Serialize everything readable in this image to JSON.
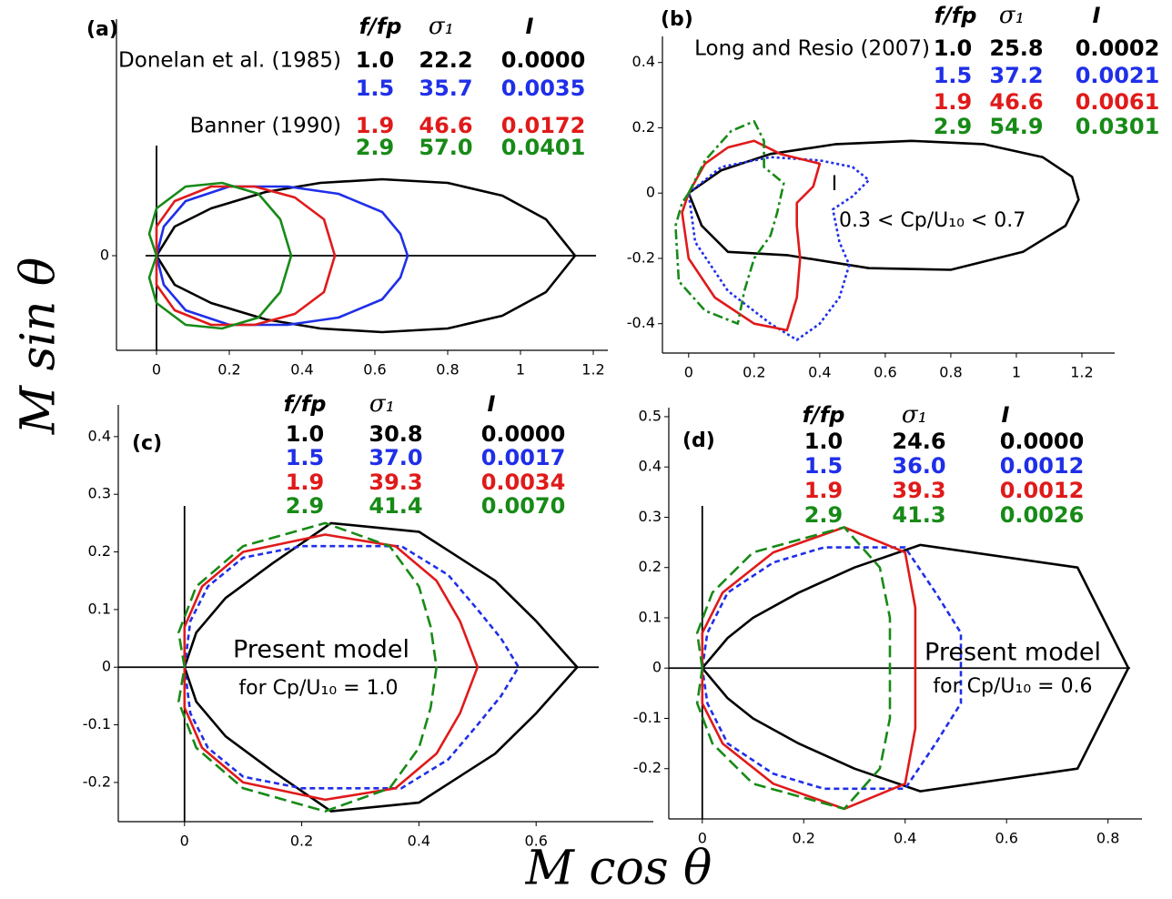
{
  "figure": {
    "xlabel": "M cos θ",
    "ylabel": "M sin θ"
  },
  "chart_data": [
    {
      "type": "line",
      "panel_label": "(a)",
      "xlim": [
        -0.11,
        1.24
      ],
      "ylim": [
        -0.26,
        0.65
      ],
      "xticks": [
        0,
        0.2,
        0.4,
        0.6,
        0.8,
        1,
        1.2
      ],
      "yticks": [
        0
      ],
      "legend_header": [
        "f/fp",
        "σ₁",
        "I"
      ],
      "series": [
        {
          "color": "#000000",
          "dash": "solid",
          "source": "Donelan et al. (1985)",
          "f_fp": "1.0",
          "sigma1": "22.2",
          "I": "0.0000",
          "x": [
            0,
            0.05,
            0.15,
            0.3,
            0.45,
            0.62,
            0.8,
            0.95,
            1.07,
            1.15,
            1.07,
            0.95,
            0.8,
            0.62,
            0.45,
            0.3,
            0.15,
            0.05,
            0
          ],
          "values": [
            0,
            0.08,
            0.13,
            0.175,
            0.2,
            0.21,
            0.2,
            0.165,
            0.1,
            0,
            -0.1,
            -0.165,
            -0.2,
            -0.21,
            -0.2,
            -0.175,
            -0.13,
            -0.08,
            0
          ]
        },
        {
          "color": "#1f2fe8",
          "dash": "solid",
          "f_fp": "1.5",
          "sigma1": "35.7",
          "I": "0.0035",
          "x": [
            0,
            0.02,
            0.08,
            0.2,
            0.36,
            0.5,
            0.62,
            0.67,
            0.69,
            0.67,
            0.62,
            0.5,
            0.36,
            0.2,
            0.08,
            0.02,
            0
          ],
          "values": [
            0,
            0.08,
            0.15,
            0.19,
            0.19,
            0.17,
            0.12,
            0.06,
            0,
            -0.06,
            -0.12,
            -0.17,
            -0.19,
            -0.19,
            -0.15,
            -0.08,
            0
          ]
        },
        {
          "color": "#e01a1a",
          "dash": "solid",
          "source": "Banner (1990)",
          "f_fp": "1.9",
          "sigma1": "46.6",
          "I": "0.0172",
          "x": [
            0,
            0,
            0.05,
            0.15,
            0.27,
            0.38,
            0.46,
            0.49,
            0.46,
            0.38,
            0.27,
            0.15,
            0.05,
            0,
            0
          ],
          "values": [
            0,
            0.08,
            0.15,
            0.19,
            0.19,
            0.16,
            0.1,
            0,
            -0.1,
            -0.16,
            -0.19,
            -0.19,
            -0.15,
            -0.08,
            0
          ]
        },
        {
          "color": "#178a17",
          "dash": "solid",
          "f_fp": "2.9",
          "sigma1": "57.0",
          "I": "0.0401",
          "x": [
            0,
            -0.02,
            0,
            0.08,
            0.18,
            0.28,
            0.34,
            0.37,
            0.34,
            0.28,
            0.18,
            0.08,
            0,
            -0.02,
            0
          ],
          "values": [
            0,
            0.06,
            0.13,
            0.19,
            0.2,
            0.17,
            0.1,
            0,
            -0.1,
            -0.17,
            -0.2,
            -0.19,
            -0.13,
            -0.06,
            0
          ]
        }
      ]
    },
    {
      "type": "line",
      "panel_label": "(b)",
      "xlim": [
        -0.08,
        1.3
      ],
      "ylim": [
        -0.49,
        0.48
      ],
      "xticks": [
        0,
        0.2,
        0.4,
        0.6,
        0.8,
        1,
        1.2
      ],
      "yticks": [
        -0.4,
        -0.2,
        0,
        0.2,
        0.4
      ],
      "legend_header": [
        "f/fp",
        "σ₁",
        "I"
      ],
      "annotations": [
        "I",
        "0.3 < Cp/U₁₀ < 0.7"
      ],
      "series": [
        {
          "color": "#000000",
          "dash": "solid",
          "source": "Long and Resio (2007)",
          "f_fp": "1.0",
          "sigma1": "25.8",
          "I": "0.0002",
          "x": [
            0,
            0.1,
            0.25,
            0.45,
            0.68,
            0.9,
            1.08,
            1.17,
            1.19,
            1.15,
            1.02,
            0.8,
            0.55,
            0.3,
            0.12,
            0.04,
            0
          ],
          "values": [
            0,
            0.07,
            0.12,
            0.15,
            0.16,
            0.15,
            0.11,
            0.05,
            -0.02,
            -0.1,
            -0.18,
            -0.235,
            -0.23,
            -0.19,
            -0.18,
            -0.1,
            0
          ]
        },
        {
          "color": "#1f2fe8",
          "dash": "dotted",
          "f_fp": "1.5",
          "sigma1": "37.2",
          "I": "0.0021",
          "x": [
            0,
            0.1,
            0.25,
            0.4,
            0.5,
            0.55,
            0.5,
            0.44,
            0.46,
            0.49,
            0.46,
            0.4,
            0.33,
            0.25,
            0.12,
            0.02,
            0
          ],
          "values": [
            0,
            0.08,
            0.11,
            0.1,
            0.08,
            0.04,
            -0.01,
            -0.05,
            -0.15,
            -0.22,
            -0.32,
            -0.4,
            -0.45,
            -0.4,
            -0.3,
            -0.15,
            0
          ]
        },
        {
          "color": "#e01a1a",
          "dash": "solid",
          "f_fp": "1.9",
          "sigma1": "46.6",
          "I": "0.0061",
          "x": [
            0,
            0.05,
            0.12,
            0.2,
            0.28,
            0.4,
            0.38,
            0.33,
            0.33,
            0.34,
            0.33,
            0.3,
            0.2,
            0.08,
            0,
            -0.02,
            0
          ],
          "values": [
            0,
            0.09,
            0.14,
            0.16,
            0.12,
            0.09,
            0.02,
            -0.03,
            -0.1,
            -0.2,
            -0.32,
            -0.42,
            -0.4,
            -0.32,
            -0.2,
            -0.06,
            0
          ]
        },
        {
          "color": "#178a17",
          "dash": "dashdot",
          "f_fp": "2.9",
          "sigma1": "54.9",
          "I": "0.0301",
          "x": [
            0,
            0.05,
            0.13,
            0.2,
            0.23,
            0.23,
            0.29,
            0.27,
            0.25,
            0.2,
            0.17,
            0.15,
            0.05,
            -0.03,
            -0.04,
            -0.02,
            0
          ],
          "values": [
            0,
            0.1,
            0.19,
            0.22,
            0.16,
            0.08,
            0.03,
            -0.06,
            -0.13,
            -0.2,
            -0.3,
            -0.4,
            -0.36,
            -0.27,
            -0.1,
            -0.03,
            0
          ]
        }
      ]
    },
    {
      "type": "line",
      "panel_label": "(c)",
      "xlim": [
        -0.113,
        0.8
      ],
      "ylim": [
        -0.268,
        0.455
      ],
      "xticks": [
        0,
        0.2,
        0.4,
        0.6
      ],
      "yticks": [
        -0.2,
        -0.1,
        0,
        0.1,
        0.2,
        0.3,
        0.4
      ],
      "legend_header": [
        "f/fp",
        "σ₁",
        "I"
      ],
      "annotations": [
        "Present model",
        "for Cp/U₁₀ = 1.0"
      ],
      "series": [
        {
          "color": "#000000",
          "dash": "solid",
          "f_fp": "1.0",
          "sigma1": "30.8",
          "I": "0.0000",
          "x": [
            0,
            0.02,
            0.07,
            0.15,
            0.25,
            0.4,
            0.53,
            0.6,
            0.67,
            0.6,
            0.53,
            0.4,
            0.25,
            0.15,
            0.07,
            0.02,
            0
          ],
          "values": [
            0,
            0.06,
            0.12,
            0.18,
            0.25,
            0.235,
            0.15,
            0.08,
            0,
            -0.08,
            -0.15,
            -0.235,
            -0.25,
            -0.18,
            -0.12,
            -0.06,
            0
          ]
        },
        {
          "color": "#1f2fe8",
          "dash": "dashed",
          "f_fp": "1.5",
          "sigma1": "37.0",
          "I": "0.0017",
          "x": [
            0,
            0.01,
            0.04,
            0.1,
            0.2,
            0.37,
            0.45,
            0.5,
            0.54,
            0.57,
            0.54,
            0.5,
            0.45,
            0.37,
            0.2,
            0.1,
            0.04,
            0.01,
            0
          ],
          "values": [
            0,
            0.08,
            0.14,
            0.19,
            0.21,
            0.21,
            0.16,
            0.1,
            0.05,
            0,
            -0.05,
            -0.1,
            -0.16,
            -0.21,
            -0.21,
            -0.19,
            -0.14,
            -0.08,
            0
          ]
        },
        {
          "color": "#e01a1a",
          "dash": "solid",
          "f_fp": "1.9",
          "sigma1": "39.3",
          "I": "0.0034",
          "x": [
            0,
            0,
            0.03,
            0.1,
            0.24,
            0.36,
            0.43,
            0.47,
            0.5,
            0.47,
            0.43,
            0.36,
            0.24,
            0.1,
            0.03,
            0,
            0
          ],
          "values": [
            0,
            0.07,
            0.14,
            0.2,
            0.23,
            0.21,
            0.15,
            0.08,
            0,
            -0.08,
            -0.15,
            -0.21,
            -0.23,
            -0.2,
            -0.14,
            -0.07,
            0
          ]
        },
        {
          "color": "#178a17",
          "dash": "longdash",
          "f_fp": "2.9",
          "sigma1": "41.4",
          "I": "0.0070",
          "x": [
            0,
            -0.01,
            0.02,
            0.1,
            0.24,
            0.35,
            0.4,
            0.42,
            0.43,
            0.42,
            0.4,
            0.35,
            0.24,
            0.1,
            0.02,
            -0.01,
            0
          ],
          "values": [
            0,
            0.06,
            0.14,
            0.21,
            0.25,
            0.21,
            0.14,
            0.07,
            0,
            -0.07,
            -0.14,
            -0.21,
            -0.25,
            -0.21,
            -0.14,
            -0.06,
            0
          ]
        }
      ]
    },
    {
      "type": "line",
      "panel_label": "(d)",
      "xlim": [
        -0.066,
        0.867
      ],
      "ylim": [
        -0.3,
        0.518
      ],
      "xticks": [
        0,
        0.2,
        0.4,
        0.6,
        0.8
      ],
      "yticks": [
        -0.2,
        -0.1,
        0,
        0.1,
        0.2,
        0.3,
        0.4,
        0.5
      ],
      "legend_header": [
        "f/fp",
        "σ₁",
        "I"
      ],
      "annotations": [
        "Present model",
        "for Cp/U₁₀ = 0.6"
      ],
      "series": [
        {
          "color": "#000000",
          "dash": "solid",
          "f_fp": "1.0",
          "sigma1": "24.6",
          "I": "0.0000",
          "x": [
            0,
            0.05,
            0.1,
            0.19,
            0.3,
            0.43,
            0.74,
            0.84,
            0.74,
            0.43,
            0.3,
            0.19,
            0.1,
            0.05,
            0
          ],
          "values": [
            0,
            0.06,
            0.1,
            0.15,
            0.2,
            0.245,
            0.2,
            0,
            -0.2,
            -0.245,
            -0.2,
            -0.15,
            -0.1,
            -0.06,
            0
          ]
        },
        {
          "color": "#1f2fe8",
          "dash": "dashed",
          "f_fp": "1.5",
          "sigma1": "36.0",
          "I": "0.0012",
          "x": [
            0,
            0.01,
            0.05,
            0.14,
            0.24,
            0.4,
            0.46,
            0.51,
            0.51,
            0.51,
            0.46,
            0.4,
            0.24,
            0.14,
            0.05,
            0.01,
            0
          ],
          "values": [
            0,
            0.07,
            0.15,
            0.21,
            0.24,
            0.24,
            0.15,
            0.07,
            0,
            -0.07,
            -0.15,
            -0.24,
            -0.24,
            -0.21,
            -0.15,
            -0.07,
            0
          ]
        },
        {
          "color": "#e01a1a",
          "dash": "solid",
          "f_fp": "1.9",
          "sigma1": "39.3",
          "I": "0.0012",
          "x": [
            0,
            0,
            0.04,
            0.14,
            0.28,
            0.4,
            0.42,
            0.42,
            0.42,
            0.4,
            0.28,
            0.14,
            0.04,
            0,
            0
          ],
          "values": [
            0,
            0.07,
            0.15,
            0.23,
            0.28,
            0.23,
            0.12,
            0,
            -0.12,
            -0.23,
            -0.28,
            -0.23,
            -0.15,
            -0.07,
            0
          ]
        },
        {
          "color": "#178a17",
          "dash": "longdash",
          "f_fp": "2.9",
          "sigma1": "41.3",
          "I": "0.0026",
          "x": [
            0,
            -0.01,
            0.02,
            0.1,
            0.28,
            0.35,
            0.37,
            0.37,
            0.37,
            0.35,
            0.28,
            0.1,
            0.02,
            -0.01,
            0
          ],
          "values": [
            0,
            0.07,
            0.15,
            0.23,
            0.28,
            0.2,
            0.1,
            0,
            -0.1,
            -0.2,
            -0.28,
            -0.23,
            -0.15,
            -0.07,
            0
          ]
        }
      ]
    }
  ]
}
